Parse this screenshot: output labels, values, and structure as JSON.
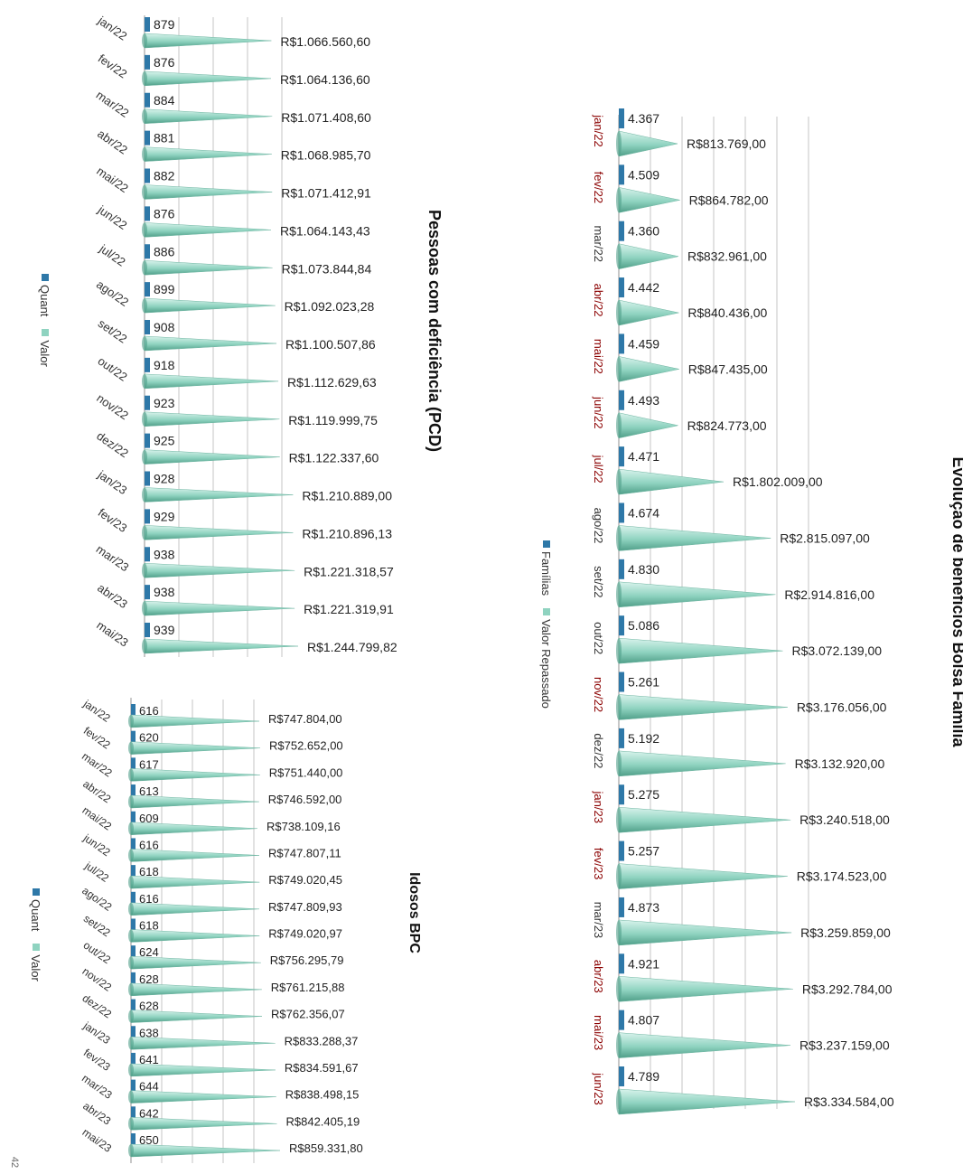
{
  "colors": {
    "quant": "#2e78a8",
    "valor": "#8fd3c0",
    "cone_dark": "#4f9e88",
    "month_dark": "#8b0000",
    "grid": "#cfcfcf"
  },
  "chart_data": [
    {
      "type": "bar",
      "title": "Pessoas com deficiência (PCD)",
      "categories": [
        "jan/22",
        "fev/22",
        "mar/22",
        "abr/22",
        "mai/22",
        "jun/22",
        "jul/22",
        "ago/22",
        "set/22",
        "out/22",
        "nov/22",
        "dez/22",
        "jan/23",
        "fev/23",
        "mar/23",
        "abr/23",
        "mai/23"
      ],
      "series": [
        {
          "name": "Quant",
          "values": [
            879,
            876,
            884,
            881,
            882,
            876,
            886,
            899,
            908,
            918,
            923,
            925,
            928,
            929,
            938,
            938,
            939
          ],
          "labels": [
            "879",
            "876",
            "884",
            "881",
            "882",
            "876",
            "886",
            "899",
            "908",
            "918",
            "923",
            "925",
            "928",
            "929",
            "938",
            "938",
            "939"
          ]
        },
        {
          "name": "Valor",
          "values": [
            1066560.6,
            1064136.6,
            1071408.6,
            1068985.7,
            1071412.91,
            1064143.43,
            1073844.84,
            1092023.28,
            1100507.86,
            1112629.63,
            1119999.75,
            1122337.6,
            1210889.0,
            1210896.13,
            1221318.57,
            1221319.91,
            1244799.82
          ],
          "labels": [
            "R$1.066.560,60",
            "R$1.064.136,60",
            "R$1.071.408,60",
            "R$1.068.985,70",
            "R$1.071.412,91",
            "R$1.064.143,43",
            "R$1.073.844,84",
            "R$1.092.023,28",
            "R$1.100.507,86",
            "R$1.112.629,63",
            "R$1.119.999,75",
            "R$1.122.337,60",
            "R$1.210.889,00",
            "R$1.210.896,13",
            "R$1.221.318,57",
            "R$1.221.319,91",
            "R$1.244.799,82"
          ]
        }
      ],
      "legend": [
        "Quant",
        "Valor"
      ]
    },
    {
      "type": "bar",
      "title": "Idosos BPC",
      "categories": [
        "jan/22",
        "fev/22",
        "mar/22",
        "abr/22",
        "mai/22",
        "jun/22",
        "jul/22",
        "ago/22",
        "set/22",
        "out/22",
        "nov/22",
        "dez/22",
        "jan/23",
        "fev/23",
        "mar/23",
        "abr/23",
        "mai/23"
      ],
      "series": [
        {
          "name": "Quant",
          "values": [
            616,
            620,
            617,
            613,
            609,
            616,
            618,
            616,
            618,
            624,
            628,
            628,
            638,
            641,
            644,
            642,
            650
          ],
          "labels": [
            "616",
            "620",
            "617",
            "613",
            "609",
            "616",
            "618",
            "616",
            "618",
            "624",
            "628",
            "628",
            "638",
            "641",
            "644",
            "642",
            "650"
          ]
        },
        {
          "name": "Valor",
          "values": [
            747804.0,
            752652.0,
            751440.0,
            746592.0,
            738109.16,
            747807.11,
            749020.45,
            747809.93,
            749020.97,
            756295.79,
            761215.88,
            762356.07,
            833288.37,
            834591.67,
            838498.15,
            842405.19,
            859331.8
          ],
          "labels": [
            "R$747.804,00",
            "R$752.652,00",
            "R$751.440,00",
            "R$746.592,00",
            "R$738.109,16",
            "R$747.807,11",
            "R$749.020,45",
            "R$747.809,93",
            "R$749.020,97",
            "R$756.295,79",
            "R$761.215,88",
            "R$762.356,07",
            "R$833.288,37",
            "R$834.591,67",
            "R$838.498,15",
            "R$842.405,19",
            "R$859.331,80"
          ]
        }
      ],
      "legend": [
        "Quant",
        "Valor"
      ]
    },
    {
      "type": "bar",
      "title": "Evolução de benefícios Bolsa Família",
      "categories": [
        "jan/22",
        "fev/22",
        "mar/22",
        "abr/22",
        "mai/22",
        "jun/22",
        "jul/22",
        "ago/22",
        "set/22",
        "out/22",
        "nov/22",
        "dez/22",
        "jan/23",
        "fev/23",
        "mar/23",
        "abr/23",
        "mai/23",
        "jun/23"
      ],
      "series": [
        {
          "name": "Famílias",
          "values": [
            4367,
            4509,
            4360,
            4442,
            4459,
            4493,
            4471,
            4674,
            4830,
            5086,
            5261,
            5192,
            5275,
            5257,
            4873,
            4921,
            4807,
            4789
          ],
          "labels": [
            "4.367",
            "4.509",
            "4.360",
            "4.442",
            "4.459",
            "4.493",
            "4.471",
            "4.674",
            "4.830",
            "5.086",
            "5.261",
            "5.192",
            "5.275",
            "5.257",
            "4.873",
            "4.921",
            "4.807",
            "4.789"
          ]
        },
        {
          "name": "Valor Repassado",
          "values": [
            813769,
            864782,
            832961,
            840436,
            847435,
            824773,
            1802009,
            2815097,
            2914816,
            3072139,
            3176056,
            3132920,
            3240518,
            3174523,
            3259859,
            3292784,
            3237159,
            3334584
          ],
          "labels": [
            "R$813.769,00",
            "R$864.782,00",
            "R$832.961,00",
            "R$840.436,00",
            "R$847.435,00",
            "R$824.773,00",
            "R$1.802.009,00",
            "R$2.815.097,00",
            "R$2.914.816,00",
            "R$3.072.139,00",
            "R$3.176.056,00",
            "R$3.132.920,00",
            "R$3.240.518,00",
            "R$3.174.523,00",
            "R$3.259.859,00",
            "R$3.292.784,00",
            "R$3.237.159,00",
            "R$3.334.584,00"
          ]
        }
      ],
      "legend": [
        "Famílias",
        "Valor Repassado"
      ],
      "month_highlight": [
        true,
        true,
        false,
        true,
        true,
        true,
        true,
        false,
        false,
        false,
        true,
        false,
        true,
        true,
        false,
        true,
        true,
        true
      ]
    }
  ],
  "page_number": "42"
}
